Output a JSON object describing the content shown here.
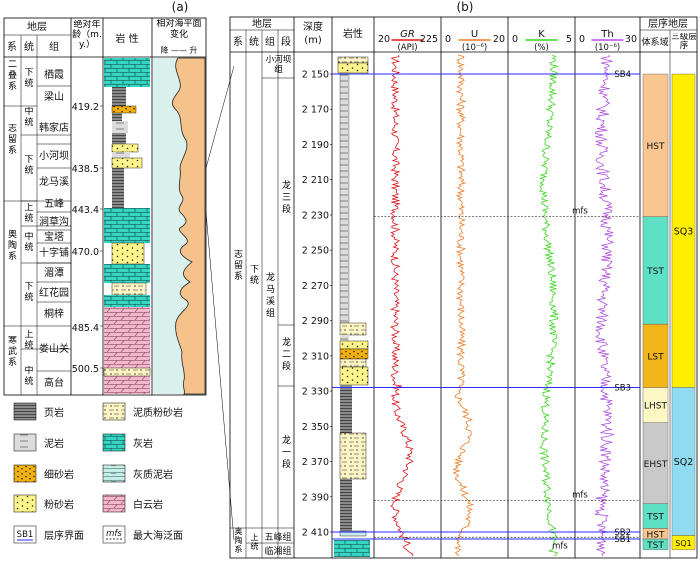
{
  "panel_a": {
    "label": "(a)",
    "headers": {
      "stratum": "地层",
      "system": "系",
      "series": "统",
      "group": "组",
      "age": "绝对年龄（m.y.）",
      "lithology": "岩 性",
      "sea_level": "相对海平面变化",
      "sea_level_axis": "降 —— 升"
    },
    "systems": [
      {
        "name": "二叠系"
      },
      {
        "name": "志留系"
      },
      {
        "name": "奥陶系"
      },
      {
        "name": "寒武系"
      }
    ],
    "series": [
      {
        "name": "下统"
      },
      {
        "name": "中统"
      },
      {
        "name": "下统"
      },
      {
        "name": "上统"
      },
      {
        "name": "中统"
      },
      {
        "name": "下统"
      },
      {
        "name": "上统"
      },
      {
        "name": "中统"
      }
    ],
    "groups": [
      {
        "name": "栖霞"
      },
      {
        "name": "梁山"
      },
      {
        "name": "韩家店"
      },
      {
        "name": "小河坝"
      },
      {
        "name": "龙马溪"
      },
      {
        "name": "五峰"
      },
      {
        "name": "涧草沟"
      },
      {
        "name": "宝塔"
      },
      {
        "name": "十字铺"
      },
      {
        "name": "湄潭"
      },
      {
        "name": "红花园"
      },
      {
        "name": "桐梓"
      },
      {
        "name": "娄山关"
      },
      {
        "name": "高台"
      }
    ],
    "ages": [
      "419.2",
      "438.5",
      "443.4",
      "470.0",
      "485.4",
      "500.5"
    ]
  },
  "legend": {
    "items": [
      {
        "label": "页岩"
      },
      {
        "label": "泥质粉砂岩"
      },
      {
        "label": "泥岩"
      },
      {
        "label": "灰岩"
      },
      {
        "label": "细砂岩"
      },
      {
        "label": "灰质泥岩"
      },
      {
        "label": "粉砂岩"
      },
      {
        "label": "白云岩"
      },
      {
        "label": "层序界面",
        "symbol": "SB1"
      },
      {
        "label": "最大海泛面",
        "symbol": "mfs"
      }
    ]
  },
  "panel_b": {
    "label": "(b)",
    "headers": {
      "stratum": "地层",
      "system": "系",
      "series": "统",
      "group": "组",
      "member": "段",
      "depth": "深度",
      "depth_unit": "(m)",
      "lithology": "岩性",
      "sequence": "层序地层",
      "systems_tract": "体系域",
      "third_order": "三级层序"
    },
    "strata": {
      "system_silurian": "志留系",
      "system_ordovician": "奥陶系",
      "series_lower": "下统",
      "series_upper": "上统",
      "group_longmaxi": "龙马溪组",
      "group_xiaoheba": "小河坝组",
      "group_wufeng": "五峰组",
      "group_linxiang": "临湘组",
      "member_3": "龙三段",
      "member_2": "龙二段",
      "member_1": "龙一段"
    },
    "depth_ticks": [
      "2 150",
      "2 170",
      "2 190",
      "2 210",
      "2 230",
      "2 250",
      "2 270",
      "2 290",
      "2 310",
      "2 330",
      "2 350",
      "2 370",
      "2 390",
      "2 410"
    ],
    "logs": [
      {
        "name": "GR",
        "unit": "(API)",
        "min": "20",
        "max": "225",
        "color": "#e0161c"
      },
      {
        "name": "U",
        "unit": "(10⁻⁶)",
        "min": "0",
        "max": "20",
        "color": "#f07a26"
      },
      {
        "name": "K",
        "unit": "(%)",
        "min": "0",
        "max": "5",
        "color": "#3cd61e"
      },
      {
        "name": "Th",
        "unit": "(10⁻⁶)",
        "min": "0",
        "max": "30",
        "color": "#b050e0"
      }
    ],
    "boundaries": [
      {
        "label": "SB4",
        "depth": 2150
      },
      {
        "label": "SB3",
        "depth": 2328
      },
      {
        "label": "SB2",
        "depth": 2410
      },
      {
        "label": "SB1",
        "depth": 2414
      }
    ],
    "mfs": [
      {
        "label": "mfs",
        "depth": 2231
      },
      {
        "label": "mfs",
        "depth": 2392
      },
      {
        "label": "mfs",
        "depth": 2413
      }
    ],
    "systems_tracts": [
      {
        "label": "HST",
        "color": "#f9c590"
      },
      {
        "label": "TST",
        "color": "#5ee0c4"
      },
      {
        "label": "LST",
        "color": "#f2b51a"
      },
      {
        "label": "LHST",
        "color": "#fdf7c6"
      },
      {
        "label": "EHST",
        "color": "#c9c9c9"
      },
      {
        "label": "TST",
        "color": "#5ee0c4"
      },
      {
        "label": "HST",
        "color": "#f9c590"
      },
      {
        "label": "TST",
        "color": "#5ee0c4"
      }
    ],
    "sequences": [
      {
        "label": "SQ3",
        "color": "#ffee00"
      },
      {
        "label": "SQ2",
        "color": "#8fdcf2"
      },
      {
        "label": "SQ1",
        "color": "#ffee00"
      }
    ]
  }
}
